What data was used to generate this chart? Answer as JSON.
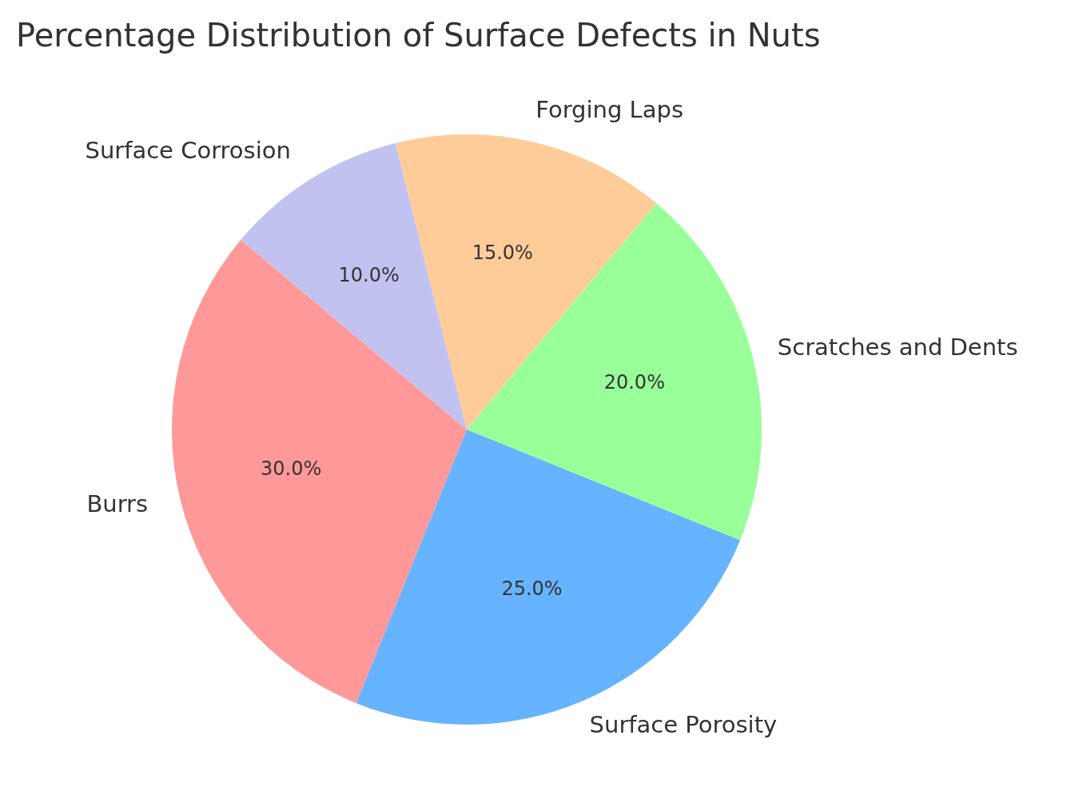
{
  "chart_data": {
    "type": "pie",
    "title": "Percentage Distribution of Surface Defects in Nuts",
    "categories": [
      "Burrs",
      "Surface Porosity",
      "Scratches and Dents",
      "Forging Laps",
      "Surface Corrosion"
    ],
    "values": [
      30,
      25,
      20,
      15,
      10
    ],
    "colors": [
      "#ff9999",
      "#66b3ff",
      "#99ff99",
      "#ffcc99",
      "#c2c2f0"
    ],
    "value_labels": [
      "30.0%",
      "25.0%",
      "20.0%",
      "15.0%",
      "10.0%"
    ],
    "legend": false
  }
}
